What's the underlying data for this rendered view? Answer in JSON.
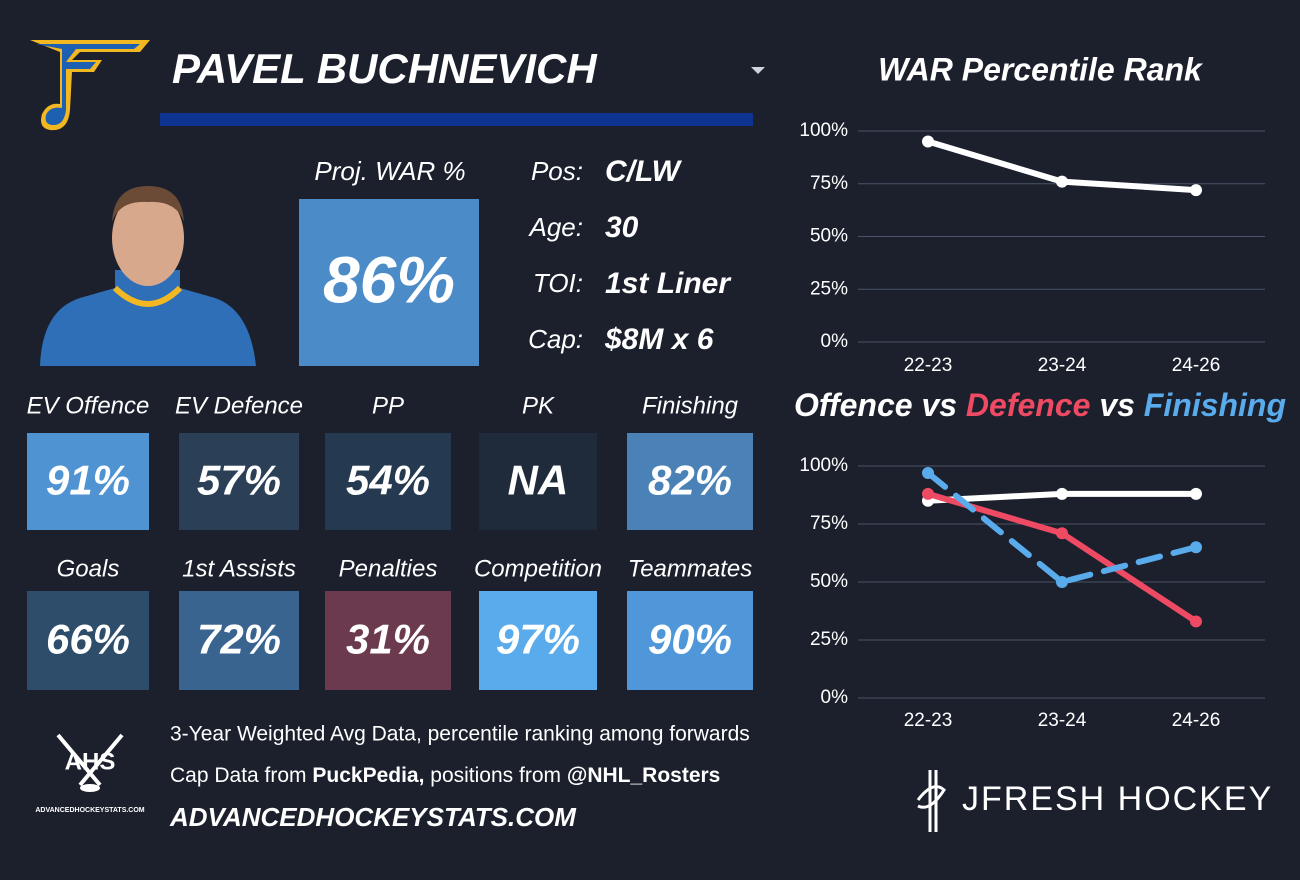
{
  "header": {
    "player": "PAVEL BUCHNEVICH"
  },
  "proj_war": {
    "label": "Proj. WAR %",
    "value": "86%"
  },
  "info": [
    {
      "label": "Pos:",
      "value": "C/LW"
    },
    {
      "label": "Age:",
      "value": "30"
    },
    {
      "label": "TOI:",
      "value": "1st Liner"
    },
    {
      "label": "Cap:",
      "value": "$8M x 6"
    }
  ],
  "tiles": [
    {
      "label": "EV Offence",
      "value": "91%",
      "color": "#4f93d3"
    },
    {
      "label": "EV Defence",
      "value": "57%",
      "color": "#2b4057"
    },
    {
      "label": "PP",
      "value": "54%",
      "color": "#253a50"
    },
    {
      "label": "PK",
      "value": "NA",
      "color": "#1f2b3a"
    },
    {
      "label": "Finishing",
      "value": "82%",
      "color": "#4a82b7"
    },
    {
      "label": "Goals",
      "value": "66%",
      "color": "#2e4d6a"
    },
    {
      "label": "1st Assists",
      "value": "72%",
      "color": "#3a6490"
    },
    {
      "label": "Penalties",
      "value": "31%",
      "color": "#6b3a4e"
    },
    {
      "label": "Competition",
      "value": "97%",
      "color": "#5aabec"
    },
    {
      "label": "Teammates",
      "value": "90%",
      "color": "#4f97d8"
    }
  ],
  "footer": {
    "logo_text": "AHS",
    "logo_url": "ADVANCEDHOCKEYSTATS.COM",
    "note": "3-Year Weighted Avg Data, percentile ranking among forwards",
    "credits": [
      "Cap Data from ",
      "PuckPedia,",
      " positions from ",
      "@NHL_Rosters"
    ],
    "site": "ADVANCEDHOCKEYSTATS.COM",
    "brand": "JFRESH HOCKEY"
  },
  "chart_data": [
    {
      "type": "line",
      "title": "WAR Percentile Rank",
      "categories": [
        "22-23",
        "23-24",
        "24-26"
      ],
      "values": [
        95,
        76,
        72
      ],
      "color": "#ffffff",
      "ylim": [
        0,
        100
      ],
      "yticks": [
        {
          "value": 0,
          "label": "0%"
        },
        {
          "value": 25,
          "label": "25%"
        },
        {
          "value": 50,
          "label": "50%"
        },
        {
          "value": 75,
          "label": "75%"
        },
        {
          "value": 100,
          "label": "100%"
        }
      ],
      "grid": true
    },
    {
      "type": "line",
      "connector": "vs",
      "categories": [
        "22-23",
        "23-24",
        "24-26"
      ],
      "series": [
        {
          "name": "Offence",
          "color": "#ffffff",
          "values": [
            85,
            88,
            88
          ]
        },
        {
          "name": "Defence",
          "color": "#ef4a63",
          "values": [
            88,
            71,
            33
          ]
        },
        {
          "name": "Finishing",
          "color": "#5aabec",
          "values": [
            97,
            50,
            65
          ],
          "dashed": true
        }
      ],
      "ylim": [
        0,
        100
      ],
      "yticks": [
        {
          "value": 0,
          "label": "0%"
        },
        {
          "value": 25,
          "label": "25%"
        },
        {
          "value": 50,
          "label": "50%"
        },
        {
          "value": 75,
          "label": "75%"
        },
        {
          "value": 100,
          "label": "100%"
        }
      ],
      "grid": true
    }
  ]
}
